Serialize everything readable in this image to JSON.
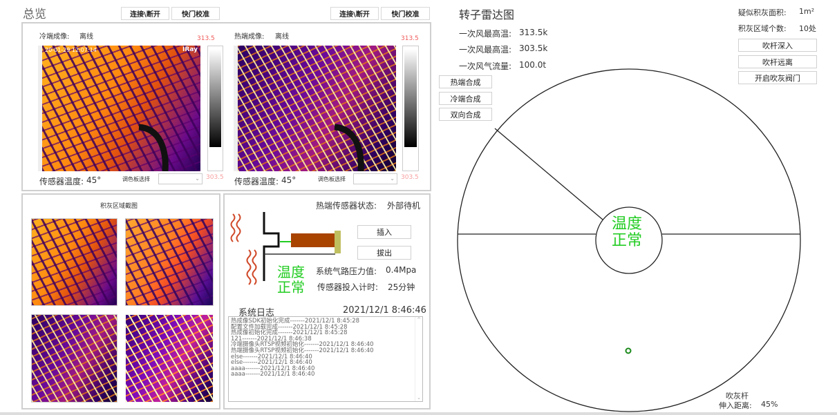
{
  "overview": {
    "title": "总览",
    "connect_label": "连接\\断开",
    "shutter_label": "快门校准"
  },
  "cold": {
    "label": "冷端成像:",
    "status": "离线",
    "max": "313.5",
    "min": "303.5",
    "sensor_temp_label": "传感器温度:",
    "sensor_temp": "45°",
    "palette_label": "调色板选择",
    "overlay_time": "20-01-29 12:07:14",
    "brand": "IRay"
  },
  "hot": {
    "label": "热端成像:",
    "status": "离线",
    "max": "313.5",
    "min": "303.5",
    "sensor_temp_label": "传感器温度:",
    "sensor_temp": "45°",
    "palette_label": "调色板选择"
  },
  "ash": {
    "title": "积灰区域截图"
  },
  "sensor": {
    "status_label": "热端传感器状态:",
    "status": "外部待机",
    "insert_label": "插入",
    "extract_label": "拔出",
    "temp_status_1": "温度",
    "temp_status_2": "正常",
    "pressure_label": "系统气路压力值:",
    "pressure": "0.4Mpa",
    "timer_label": "传感器投入计时:",
    "timer": "25分钟"
  },
  "log": {
    "title": "系统日志",
    "datetime": "2021/12/1 8:46:46",
    "entries": [
      "热成像SDK初始化完成-------2021/12/1 8:45:28",
      "配置文件加载完成-------2021/12/1 8:45:28",
      "热成像初始化完成-------2021/12/1 8:45:28",
      "121-------2021/12/1 8:46:38",
      "冷端摄像头RTSP视频初始化-------2021/12/1 8:46:40",
      "热端摄像头RTSP视频初始化-------2021/12/1 8:46:40",
      "else-------2021/12/1 8:46:40",
      "else-------2021/12/1 8:46:40",
      "aaaa-------2021/12/1 8:46:40",
      "aaaa-------2021/12/1 8:46:40"
    ]
  },
  "radar": {
    "title": "转子雷达图",
    "primary_max_temp_label": "一次风最高温:",
    "primary_max_temp": "313.5k",
    "secondary_max_temp_label": "一次风最高温:",
    "secondary_max_temp": "303.5k",
    "flow_label": "一次风气流量:",
    "flow": "100.0t",
    "hot_synth": "热端合成",
    "cold_synth": "冷端合成",
    "dual_synth": "双向合成",
    "center_1": "温度",
    "center_2": "正常",
    "lance_label": "吹灰杆",
    "depth_label": "伸入距离:",
    "depth": "45%"
  },
  "ash_stats": {
    "area_label": "疑似积灰面积:",
    "area": "1m²",
    "count_label": "积灰区域个数:",
    "count": "10处",
    "deep_label": "吹杆深入",
    "away_label": "吹杆远离",
    "valve_label": "开启吹灰阀门"
  },
  "colors": {
    "status_ok": "#22cc22",
    "limit_red": "#f05a5a",
    "heater": "#a84300",
    "sensor_tip": "#bfbf60"
  }
}
